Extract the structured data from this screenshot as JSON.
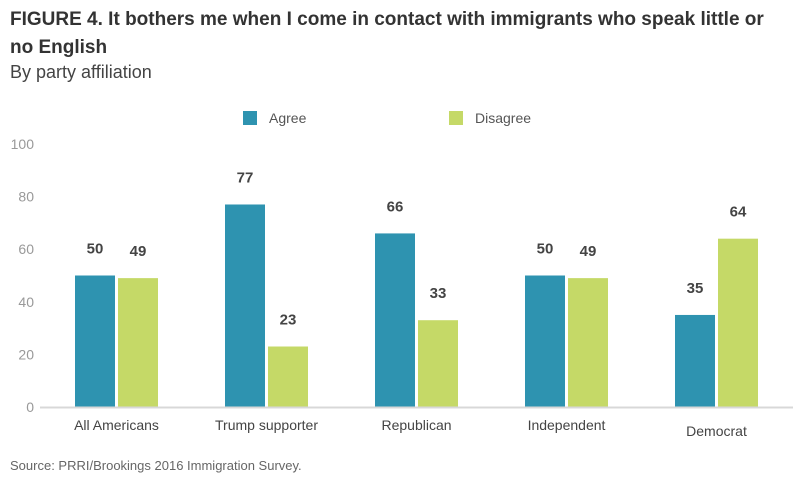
{
  "title": "FIGURE 4.  It bothers me when I come in contact with immigrants who speak little or no English",
  "subtitle": "By party affiliation",
  "source": "Source: PRRI/Brookings 2016 Immigration Survey.",
  "chart_data": {
    "type": "bar",
    "title": "FIGURE 4.  It bothers me when I come in contact with immigrants who speak little or no English",
    "subtitle": "By party affiliation",
    "xlabel": "",
    "ylabel": "",
    "ylim": [
      0,
      100
    ],
    "yticks": [
      "0",
      "20",
      "40",
      "60",
      "80",
      "100"
    ],
    "grid": false,
    "legend_position": "top",
    "categories": [
      "All Americans",
      "Trump supporter",
      "Republican",
      "Independent",
      "Democrat"
    ],
    "series": [
      {
        "name": "Agree",
        "color": "#2e93b0",
        "values": [
          50,
          77,
          66,
          50,
          35
        ]
      },
      {
        "name": "Disagree",
        "color": "#c5d967",
        "values": [
          49,
          23,
          33,
          49,
          64
        ]
      }
    ]
  }
}
